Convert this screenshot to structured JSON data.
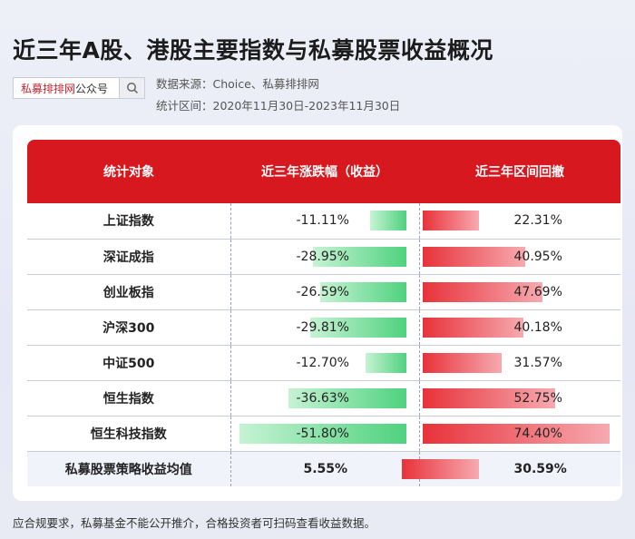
{
  "header": {
    "title": "近三年A股、港股主要指数与私募股票收益概况",
    "search": {
      "red": "私募排排网",
      "dark": "公众号"
    },
    "source": "数据来源：Choice、私募排排网",
    "period": "统计区间：2020年11月30日-2023年11月30日"
  },
  "table": {
    "columns": [
      "统计对象",
      "近三年涨跌幅（收益）",
      "近三年区间回撤"
    ],
    "rows": [
      {
        "name": "上证指数",
        "return": "-11.11%",
        "return_value": -11.11,
        "drawdown": "22.31%",
        "drawdown_value": 22.31
      },
      {
        "name": "深证成指",
        "return": "-28.95%",
        "return_value": -28.95,
        "drawdown": "40.95%",
        "drawdown_value": 40.95
      },
      {
        "name": "创业板指",
        "return": "-26.59%",
        "return_value": -26.59,
        "drawdown": "47.69%",
        "drawdown_value": 47.69
      },
      {
        "name": "沪深300",
        "return": "-29.81%",
        "return_value": -29.81,
        "drawdown": "40.18%",
        "drawdown_value": 40.18
      },
      {
        "name": "中证500",
        "return": "-12.70%",
        "return_value": -12.7,
        "drawdown": "31.57%",
        "drawdown_value": 31.57
      },
      {
        "name": "恒生指数",
        "return": "-36.63%",
        "return_value": -36.63,
        "drawdown": "52.75%",
        "drawdown_value": 52.75
      },
      {
        "name": "恒生科技指数",
        "return": "-51.80%",
        "return_value": -51.8,
        "drawdown": "74.40%",
        "drawdown_value": 74.4
      },
      {
        "name": "私募股票策略收益均值",
        "return": "5.55%",
        "return_value": 5.55,
        "drawdown": "30.59%",
        "drawdown_value": 30.59
      }
    ],
    "colors": {
      "header": "#d7181f",
      "negative_bar": "#4fd27e",
      "drawdown_bar": "#e8323a"
    }
  },
  "footer": "应合规要求，私募基金不能公开推介，合格投资者可扫码查看收益数据。"
}
